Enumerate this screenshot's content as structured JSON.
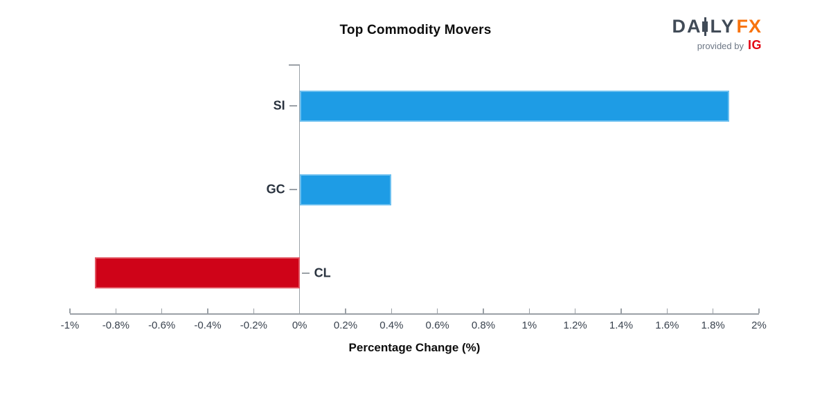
{
  "header": {
    "title": "Top Commodity Movers",
    "logo": {
      "text_daily_left": "DA",
      "text_daily_right": "LY",
      "text_fx": "FX",
      "provided_by": "provided by",
      "ig": "IG",
      "colors": {
        "daily": "#414B57",
        "fx": "#F8730D",
        "provided_by": "#6D7785",
        "ig": "#E30613"
      }
    }
  },
  "chart_data": {
    "type": "bar",
    "orientation": "horizontal",
    "title": "Top Commodity Movers",
    "xlabel": "Percentage Change (%)",
    "categories": [
      "SI",
      "GC",
      "CL"
    ],
    "values": [
      1.87,
      0.4,
      -0.89
    ],
    "xlim": [
      -1,
      2
    ],
    "xtick_step": 0.2,
    "grid": false,
    "legend": false,
    "xticks": [
      {
        "v": -1.0,
        "label": "-1%"
      },
      {
        "v": -0.8,
        "label": "-0.8%"
      },
      {
        "v": -0.6,
        "label": "-0.6%"
      },
      {
        "v": -0.4,
        "label": "-0.4%"
      },
      {
        "v": -0.2,
        "label": "-0.2%"
      },
      {
        "v": 0.0,
        "label": "0%"
      },
      {
        "v": 0.2,
        "label": "0.2%"
      },
      {
        "v": 0.4,
        "label": "0.4%"
      },
      {
        "v": 0.6,
        "label": "0.6%"
      },
      {
        "v": 0.8,
        "label": "0.8%"
      },
      {
        "v": 1.0,
        "label": "1%"
      },
      {
        "v": 1.2,
        "label": "1.2%"
      },
      {
        "v": 1.4,
        "label": "1.4%"
      },
      {
        "v": 1.6,
        "label": "1.6%"
      },
      {
        "v": 1.8,
        "label": "1.8%"
      },
      {
        "v": 2.0,
        "label": "2%"
      }
    ],
    "colors": {
      "positive_fill": "#1E9CE5",
      "positive_edge": "#6CC0F0",
      "negative_fill": "#CF0318",
      "negative_edge": "#E25562",
      "axis": "#9AA0A6",
      "tick_label": "#39424E",
      "category_label": "#2A333F"
    }
  }
}
